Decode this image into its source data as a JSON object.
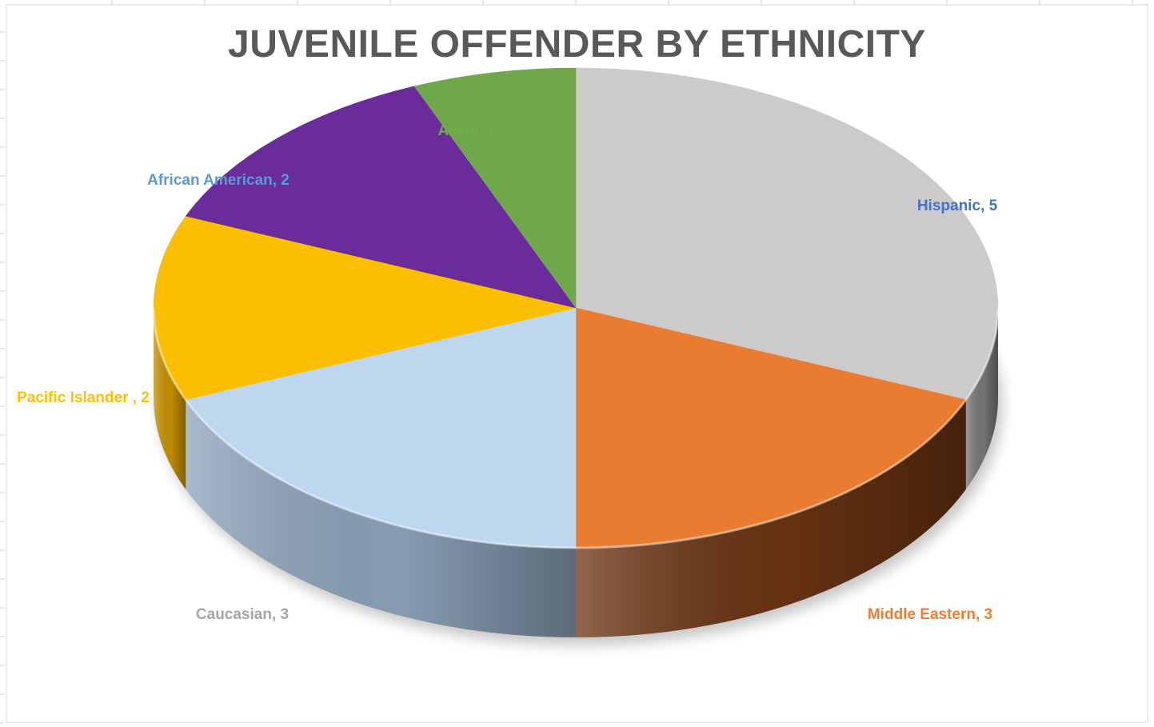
{
  "chart_data": {
    "type": "pie",
    "title": "JUVENILE OFFENDER BY ETHNICITY",
    "style": "3d-pie",
    "slices": [
      {
        "label": "Hispanic",
        "value": 5,
        "label_text": "Hispanic, 5",
        "color": "#CCCACB",
        "side_color": "#7a7879",
        "label_color": "#4472C4"
      },
      {
        "label": "Middle Eastern",
        "value": 3,
        "label_text": "Middle Eastern, 3",
        "color": "#E97C30",
        "side_color": "#6b3412",
        "label_color": "#ED7D31"
      },
      {
        "label": "Caucasian",
        "value": 3,
        "label_text": "Caucasian, 3",
        "color": "#BDD7EE",
        "side_color": "#8ea4bb",
        "label_color": "#A5A5A5"
      },
      {
        "label": "Pacific Islander",
        "value": 2,
        "label_text": "Pacific Islander , 2",
        "color": "#FBBF00",
        "side_color": "#c99200",
        "label_color": "#FFC000"
      },
      {
        "label": "African American",
        "value": 2,
        "label_text": "African American, 2",
        "color": "#6A2C9A",
        "side_color": "#3f1a5c",
        "label_color": "#5B9BD5"
      },
      {
        "label": "Asian",
        "value": 1,
        "label_text": "Asian, 1",
        "color": "#6EA84A",
        "side_color": "#3e6a28",
        "label_color": "#70AD47"
      }
    ]
  }
}
